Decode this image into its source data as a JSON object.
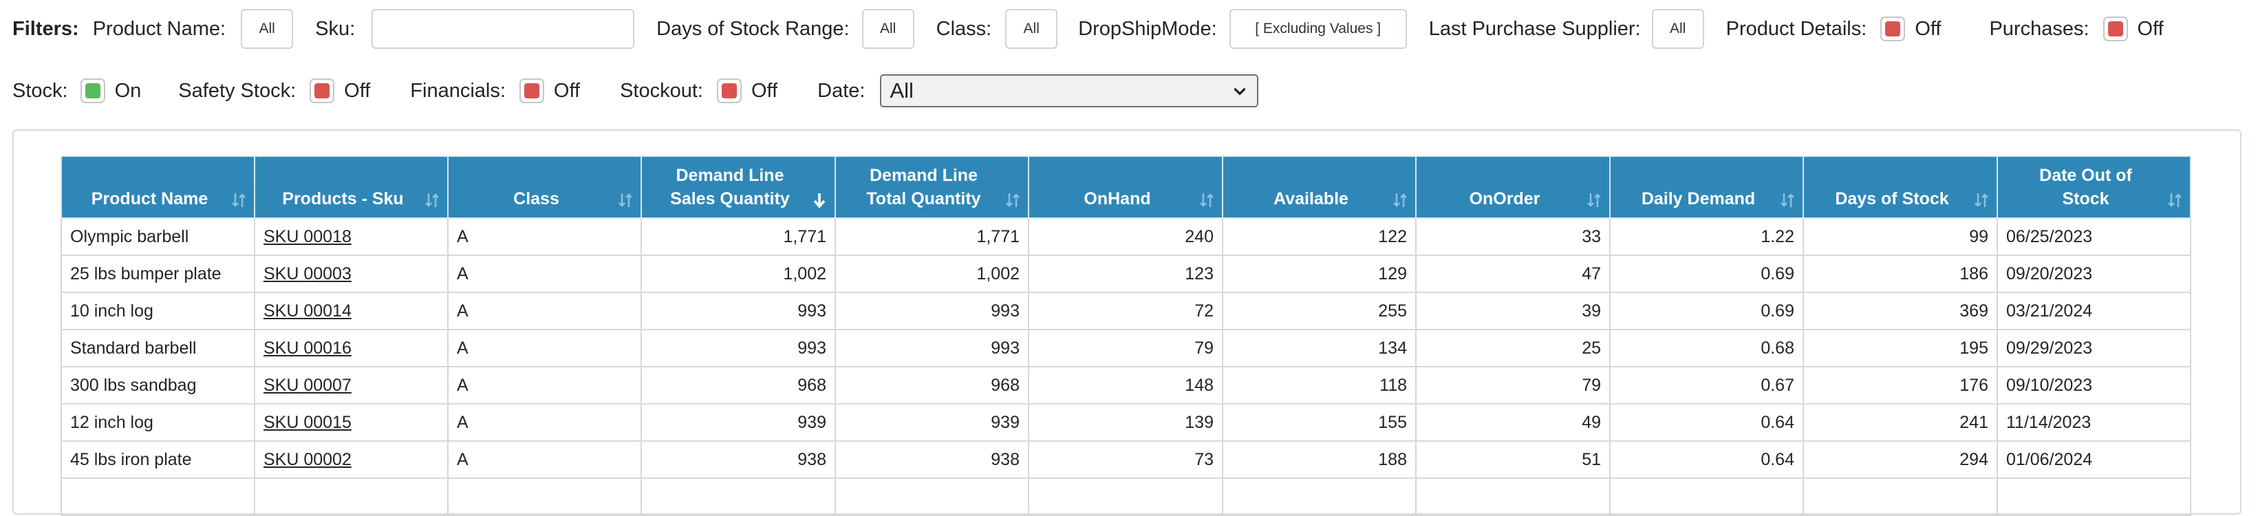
{
  "filters": {
    "title": "Filters:",
    "product_name_label": "Product Name:",
    "product_name_value": "All",
    "sku_label": "Sku:",
    "sku_value": "",
    "days_range_label": "Days of Stock Range:",
    "days_range_value": "All",
    "class_label": "Class:",
    "class_value": "All",
    "dropship_label": "DropShipMode:",
    "dropship_value": "[ Excluding Values ]",
    "supplier_label": "Last Purchase Supplier:",
    "supplier_value": "All",
    "product_details_label": "Product Details:",
    "product_details_state": "Off",
    "purchases_label": "Purchases:",
    "purchases_state": "Off",
    "stock_label": "Stock:",
    "stock_state": "On",
    "safety_label": "Safety Stock:",
    "safety_state": "Off",
    "financials_label": "Financials:",
    "financials_state": "Off",
    "stockout_label": "Stockout:",
    "stockout_state": "Off",
    "date_label": "Date:",
    "date_value": "All"
  },
  "colors": {
    "on": "#5cb85c",
    "off": "#d9534f",
    "header": "#2f87b8"
  },
  "table": {
    "columns": [
      [
        "Product Name"
      ],
      [
        "Products - Sku"
      ],
      [
        "Class"
      ],
      [
        "Demand Line",
        "Sales Quantity"
      ],
      [
        "Demand Line",
        "Total Quantity"
      ],
      [
        "OnHand"
      ],
      [
        "Available"
      ],
      [
        "OnOrder"
      ],
      [
        "Daily Demand"
      ],
      [
        "Days of Stock"
      ],
      [
        "Date Out of",
        "Stock"
      ]
    ],
    "rows": [
      [
        "Olympic barbell",
        "SKU 00018",
        "A",
        "1,771",
        "1,771",
        "240",
        "122",
        "33",
        "1.22",
        "99",
        "06/25/2023"
      ],
      [
        "25 lbs bumper plate",
        "SKU 00003",
        "A",
        "1,002",
        "1,002",
        "123",
        "129",
        "47",
        "0.69",
        "186",
        "09/20/2023"
      ],
      [
        "10 inch log",
        "SKU 00014",
        "A",
        "993",
        "993",
        "72",
        "255",
        "39",
        "0.69",
        "369",
        "03/21/2024"
      ],
      [
        "Standard barbell",
        "SKU 00016",
        "A",
        "993",
        "993",
        "79",
        "134",
        "25",
        "0.68",
        "195",
        "09/29/2023"
      ],
      [
        "300 lbs sandbag",
        "SKU 00007",
        "A",
        "968",
        "968",
        "148",
        "118",
        "79",
        "0.67",
        "176",
        "09/10/2023"
      ],
      [
        "12 inch log",
        "SKU 00015",
        "A",
        "939",
        "939",
        "139",
        "155",
        "49",
        "0.64",
        "241",
        "11/14/2023"
      ],
      [
        "45 lbs iron plate",
        "SKU 00002",
        "A",
        "938",
        "938",
        "73",
        "188",
        "51",
        "0.64",
        "294",
        "01/06/2024"
      ],
      [
        "",
        "",
        "",
        "",
        "",
        "",
        "",
        "",
        "",
        "",
        ""
      ]
    ]
  }
}
